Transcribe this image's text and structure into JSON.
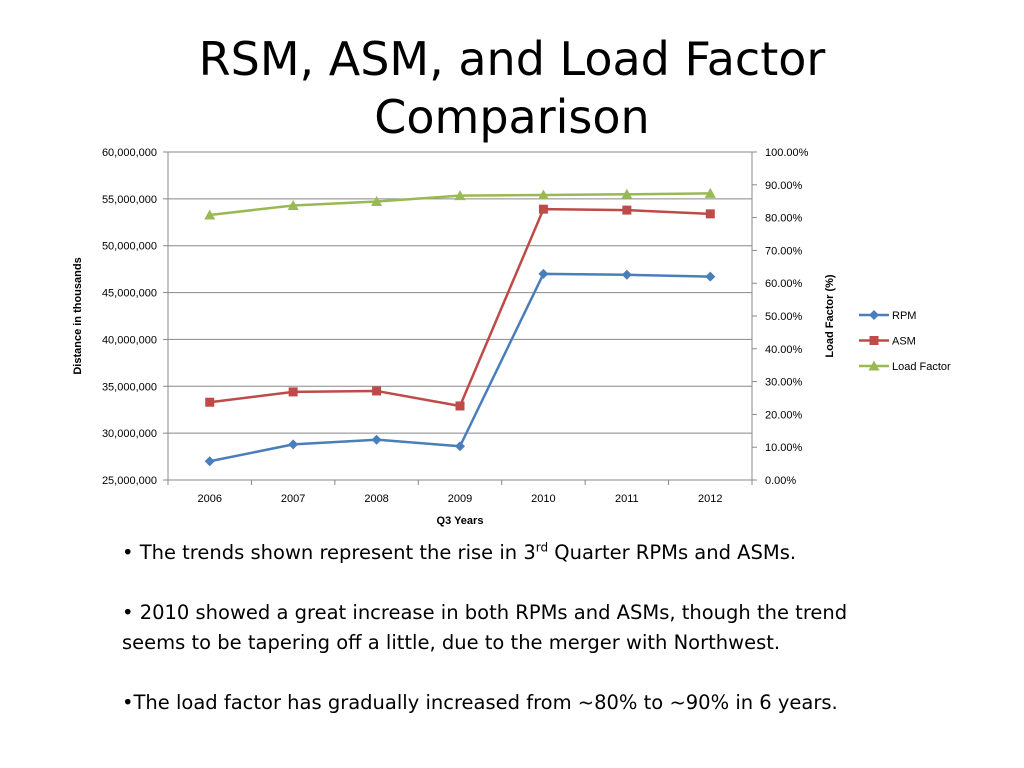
{
  "slide": {
    "title_line1": "RSM, ASM, and Load Factor",
    "title_line2": "Comparison"
  },
  "chart_data": {
    "type": "line",
    "x": [
      2006,
      2007,
      2008,
      2009,
      2010,
      2011,
      2012
    ],
    "xlabel": "Q3 Years",
    "ylabel": "Distance in thousands",
    "y2label": "Load Factor (%)",
    "ylim": [
      25000000,
      60000000
    ],
    "y2lim": [
      0,
      100
    ],
    "yticks": [
      "25,000,000",
      "30,000,000",
      "35,000,000",
      "40,000,000",
      "45,000,000",
      "50,000,000",
      "55,000,000",
      "60,000,000"
    ],
    "y2ticks": [
      "0.00%",
      "10.00%",
      "20.00%",
      "30.00%",
      "40.00%",
      "50.00%",
      "60.00%",
      "70.00%",
      "80.00%",
      "90.00%",
      "100.00%"
    ],
    "grid": true,
    "legend_position": "right",
    "series": [
      {
        "name": "RPM",
        "axis": "left",
        "color": "#4a7ebb",
        "marker": "diamond",
        "values": [
          27000000,
          28800000,
          29300000,
          28600000,
          47000000,
          46900000,
          46700000
        ]
      },
      {
        "name": "ASM",
        "axis": "left",
        "color": "#be4b48",
        "marker": "square",
        "values": [
          33300000,
          34400000,
          34500000,
          32900000,
          53900000,
          53800000,
          53400000
        ]
      },
      {
        "name": "Load Factor",
        "axis": "right",
        "color": "#98b954",
        "marker": "triangle",
        "values": [
          80.8,
          83.7,
          84.9,
          86.7,
          86.9,
          87.1,
          87.4
        ]
      }
    ]
  },
  "bullets": {
    "b1_pre": "• The trends shown represent the rise in 3",
    "b1_sup": "rd",
    "b1_post": " Quarter RPMs and ASMs.",
    "b2": "• 2010 showed a great increase in both RPMs and ASMs, though the trend seems to be tapering off a little, due to the merger with Northwest.",
    "b3": "•The load factor has gradually increased from ~80% to ~90% in 6 years."
  }
}
